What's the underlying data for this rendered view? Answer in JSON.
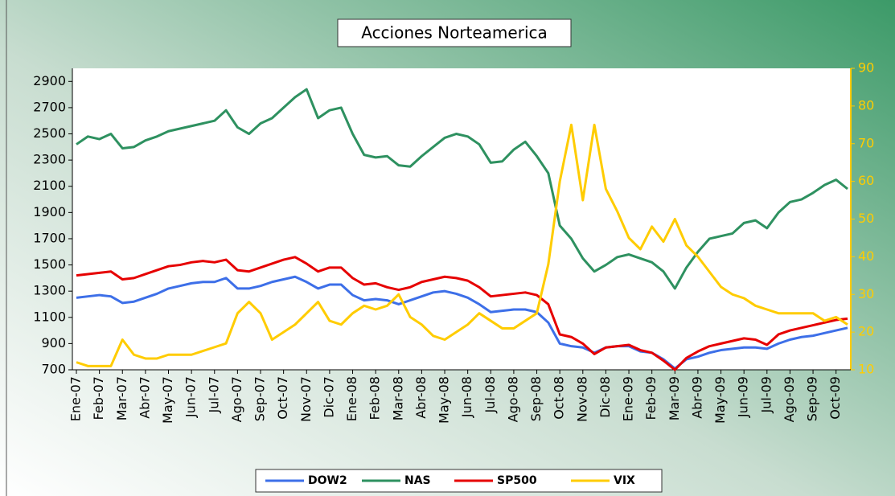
{
  "chart_data": {
    "type": "line",
    "title": "Acciones Norteamerica",
    "categories": [
      "Ene-07",
      null,
      "Feb-07",
      null,
      "Mar-07",
      null,
      "Abr-07",
      null,
      "May-07",
      null,
      "Jun-07",
      null,
      "Jul-07",
      null,
      "Ago-07",
      null,
      "Sep-07",
      null,
      "Oct-07",
      null,
      "Nov-07",
      null,
      "Dic-07",
      null,
      "Ene-08",
      null,
      "Feb-08",
      null,
      "Mar-08",
      null,
      "Abr-08",
      null,
      "May-08",
      null,
      "Jun-08",
      null,
      "Jul-08",
      null,
      "Ago-08",
      null,
      "Sep-08",
      null,
      "Oct-08",
      null,
      "Nov-08",
      null,
      "Dic-08",
      null,
      "Ene-09",
      null,
      "Feb-09",
      null,
      "Mar-09",
      null,
      "Abr-09",
      null,
      "May-09",
      null,
      "Jun-09",
      null,
      "Jul-09",
      null,
      "Ago-09",
      null,
      "Sep-09",
      null,
      "Oct-09",
      null
    ],
    "series": [
      {
        "name": "DOW2",
        "color": "#3d6fe8",
        "values": [
          1250,
          1260,
          1270,
          1260,
          1210,
          1220,
          1250,
          1280,
          1320,
          1340,
          1360,
          1370,
          1370,
          1400,
          1320,
          1320,
          1340,
          1370,
          1390,
          1410,
          1370,
          1320,
          1350,
          1350,
          1270,
          1230,
          1240,
          1230,
          1200,
          1230,
          1260,
          1290,
          1300,
          1280,
          1250,
          1200,
          1140,
          1150,
          1160,
          1160,
          1140,
          1060,
          900,
          880,
          870,
          830,
          870,
          880,
          880,
          840,
          830,
          780,
          710,
          780,
          800,
          830,
          850,
          860,
          870,
          870,
          860,
          900,
          930,
          950,
          960,
          980,
          1000,
          1020
        ]
      },
      {
        "name": "NAS",
        "color": "#2e9160",
        "values": [
          2420,
          2480,
          2460,
          2500,
          2390,
          2400,
          2450,
          2480,
          2520,
          2540,
          2560,
          2580,
          2600,
          2680,
          2550,
          2500,
          2580,
          2620,
          2700,
          2780,
          2840,
          2620,
          2680,
          2700,
          2500,
          2340,
          2320,
          2330,
          2260,
          2250,
          2330,
          2400,
          2470,
          2500,
          2480,
          2420,
          2280,
          2290,
          2380,
          2440,
          2330,
          2200,
          1800,
          1700,
          1550,
          1450,
          1500,
          1560,
          1580,
          1550,
          1520,
          1450,
          1320,
          1480,
          1600,
          1700,
          1720,
          1740,
          1820,
          1840,
          1780,
          1900,
          1980,
          2000,
          2050,
          2110,
          2150,
          2080
        ]
      },
      {
        "name": "SP500",
        "color": "#e60000",
        "values": [
          1420,
          1430,
          1440,
          1450,
          1390,
          1400,
          1430,
          1460,
          1490,
          1500,
          1520,
          1530,
          1520,
          1540,
          1460,
          1450,
          1480,
          1510,
          1540,
          1560,
          1510,
          1450,
          1480,
          1480,
          1400,
          1350,
          1360,
          1330,
          1310,
          1330,
          1370,
          1390,
          1410,
          1400,
          1380,
          1330,
          1260,
          1270,
          1280,
          1290,
          1270,
          1200,
          970,
          950,
          900,
          820,
          870,
          880,
          890,
          850,
          830,
          770,
          700,
          790,
          840,
          880,
          900,
          920,
          940,
          930,
          890,
          970,
          1000,
          1020,
          1040,
          1060,
          1080,
          1090
        ]
      },
      {
        "name": "VIX",
        "color": "#ffcc00",
        "axis": "y2",
        "values": [
          12,
          11,
          11,
          11,
          18,
          14,
          13,
          13,
          14,
          14,
          14,
          15,
          16,
          17,
          25,
          28,
          25,
          18,
          20,
          22,
          25,
          28,
          23,
          22,
          25,
          27,
          26,
          27,
          30,
          24,
          22,
          19,
          18,
          20,
          22,
          25,
          23,
          21,
          21,
          23,
          25,
          38,
          60,
          75,
          55,
          75,
          58,
          52,
          45,
          42,
          48,
          44,
          50,
          43,
          40,
          36,
          32,
          30,
          29,
          27,
          26,
          25,
          25,
          25,
          25,
          23,
          24,
          22
        ]
      }
    ],
    "ylim": [
      700,
      3000
    ],
    "yticks": [
      700,
      900,
      1100,
      1300,
      1500,
      1700,
      1900,
      2100,
      2300,
      2500,
      2700,
      2900
    ],
    "y2lim": [
      10,
      90
    ],
    "y2ticks": [
      10,
      20,
      30,
      40,
      50,
      60,
      70,
      80,
      90
    ],
    "legend": "bottom"
  }
}
